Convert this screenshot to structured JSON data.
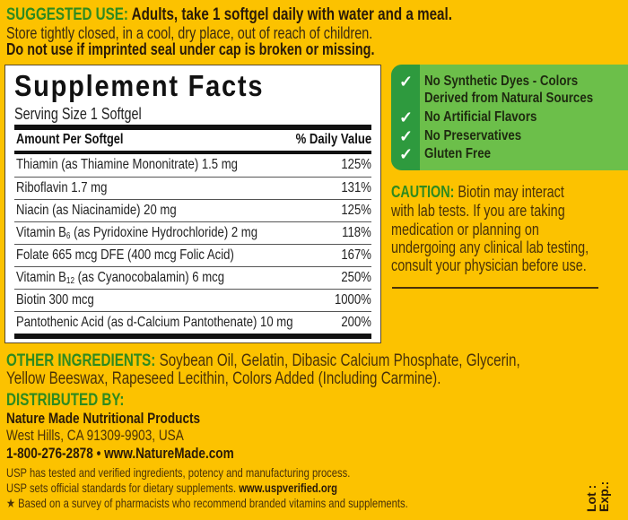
{
  "suggested_use": {
    "label": "SUGGESTED USE:",
    "text": " Adults, take 1 softgel daily with water and a meal.",
    "storage": "Store tightly closed, in a cool, dry place, out of reach of children.",
    "seal_warning": "Do not use if imprinted seal under cap is broken or missing."
  },
  "facts": {
    "title": "Supplement Facts",
    "serving": "Serving Size 1 Softgel",
    "col_amount": "Amount Per Softgel",
    "col_dv": "% Daily Value",
    "rows": [
      {
        "pre": "Thiamin (as Thiamine Mononitrate)  1.5 mg",
        "sub": "",
        "post": "",
        "dv": "125%"
      },
      {
        "pre": "Riboflavin  1.7 mg",
        "sub": "",
        "post": "",
        "dv": "131%"
      },
      {
        "pre": "Niacin (as Niacinamide)  20 mg",
        "sub": "",
        "post": "",
        "dv": "125%"
      },
      {
        "pre": "Vitamin B",
        "sub": "6",
        "post": " (as Pyridoxine Hydrochloride)  2 mg",
        "dv": "118%"
      },
      {
        "pre": "Folate  665 mcg DFE (400 mcg Folic Acid)",
        "sub": "",
        "post": "",
        "dv": "167%"
      },
      {
        "pre": "Vitamin B",
        "sub": "12",
        "post": " (as Cyanocobalamin)  6 mcg",
        "dv": "250%"
      },
      {
        "pre": "Biotin  300 mcg",
        "sub": "",
        "post": "",
        "dv": "1000%"
      },
      {
        "pre": "Pantothenic Acid (as d-Calcium Pantothenate)  10 mg",
        "sub": "",
        "post": "",
        "dv": "200%"
      }
    ]
  },
  "claims": [
    "No Synthetic Dyes - Colors",
    "Derived from Natural Sources",
    "No Artificial Flavors",
    "No Preservatives",
    "Gluten Free"
  ],
  "caution": {
    "label": "CAUTION:",
    "lines": [
      " Biotin may interact",
      "with lab tests. If you are taking",
      "medication or planning on",
      "undergoing any clinical lab testing,",
      "consult your physician before use."
    ]
  },
  "other_ingredients": {
    "label": "OTHER INGREDIENTS:",
    "line1": " Soybean Oil, Gelatin, Dibasic Calcium Phosphate, Glycerin,",
    "line2": "Yellow Beeswax, Rapeseed Lecithin, Colors Added (Including Carmine)."
  },
  "distributor": {
    "label": "DISTRIBUTED BY:",
    "name": "Nature Made Nutritional Products",
    "address": "West Hills, CA 91309-9903, USA",
    "contact": "1-800-276-2878 • www.NatureMade.com"
  },
  "usp": {
    "line1": "USP has tested and verified ingredients, potency and manufacturing process.",
    "line2": "USP sets official standards for dietary supplements. ",
    "link": "www.uspverified.org",
    "footnote": "★ Based on a survey of pharmacists who recommend branded vitamins and supplements."
  },
  "lot_label": "Lot :",
  "exp_label": "Exp.:",
  "colors": {
    "background": "#fcc200",
    "green_text": "#2e8a1f",
    "claims_box": "#6cbf4a",
    "claims_strip": "#2e9a3e"
  }
}
